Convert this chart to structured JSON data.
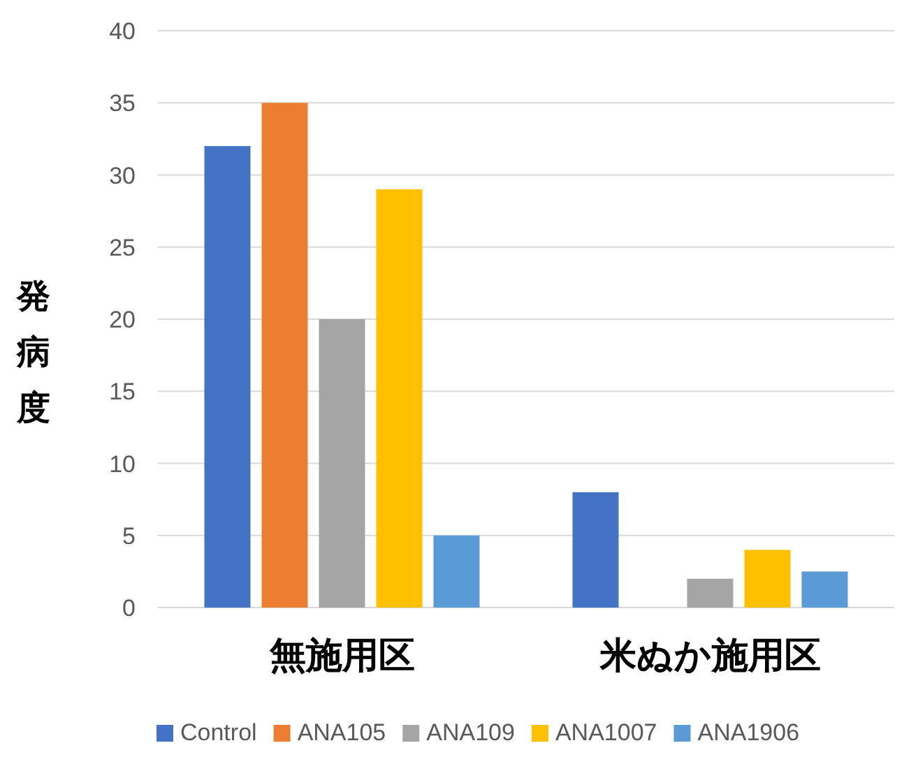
{
  "chart_data": {
    "type": "bar",
    "ylabel": "発病度",
    "categories": [
      "無施用区",
      "米ぬか施用区"
    ],
    "series": [
      {
        "name": "Control",
        "color": "#4472c4",
        "values": [
          32,
          8
        ]
      },
      {
        "name": "ANA105",
        "color": "#ed7d31",
        "values": [
          35,
          0
        ]
      },
      {
        "name": "ANA109",
        "color": "#a5a5a5",
        "values": [
          20,
          2
        ]
      },
      {
        "name": "ANA1007",
        "color": "#ffc000",
        "values": [
          29,
          4
        ]
      },
      {
        "name": "ANA1906",
        "color": "#5b9bd5",
        "values": [
          5,
          2.5
        ]
      }
    ],
    "ylim": [
      0,
      40
    ],
    "yticks": [
      0,
      5,
      10,
      15,
      20,
      25,
      30,
      35,
      40
    ],
    "grid": "y",
    "legend": "bottom"
  }
}
